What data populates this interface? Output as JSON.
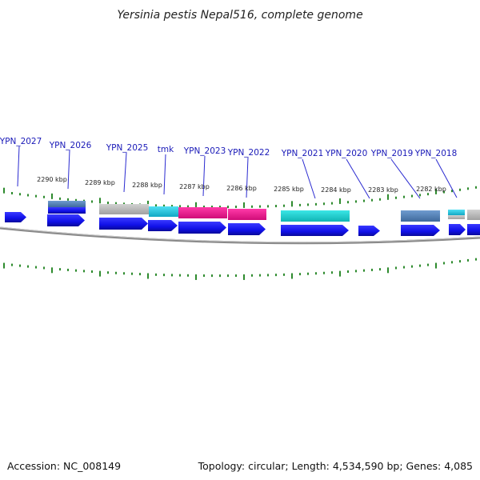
{
  "title": "Yersinia pestis Nepal516, complete genome",
  "footer": {
    "accession": "Accession: NC_008149",
    "summary": "Topology: circular; Length: 4,534,590 bp; Genes: 4,085"
  },
  "colors": {
    "cds": "#1010e8",
    "cds_dark": "#0a0aa0",
    "steelblue": "#4f7cb0",
    "cyan": "#1fc8e0",
    "teal": "#1ad0d0",
    "magenta": "#f0168f",
    "gray": "#b8b8b8",
    "backbone": "#8a8a8a",
    "tick": "#2e8b2e",
    "label": "#1a1ab8"
  },
  "gene_labels": [
    {
      "name": "YPN_2027"
    },
    {
      "name": "YPN_2026"
    },
    {
      "name": "YPN_2025"
    },
    {
      "name": "tmk"
    },
    {
      "name": "YPN_2023"
    },
    {
      "name": "YPN_2022"
    },
    {
      "name": "YPN_2021"
    },
    {
      "name": "YPN_2020"
    },
    {
      "name": "YPN_2019"
    },
    {
      "name": "YPN_2018"
    }
  ],
  "kbp_labels": [
    {
      "text": "2290 kbp"
    },
    {
      "text": "2289 kbp"
    },
    {
      "text": "2288 kbp"
    },
    {
      "text": "2287 kbp"
    },
    {
      "text": "2286 kbp"
    },
    {
      "text": "2285 kbp"
    },
    {
      "text": "2284 kbp"
    },
    {
      "text": "2283 kbp"
    },
    {
      "text": "2282 kbp"
    }
  ]
}
